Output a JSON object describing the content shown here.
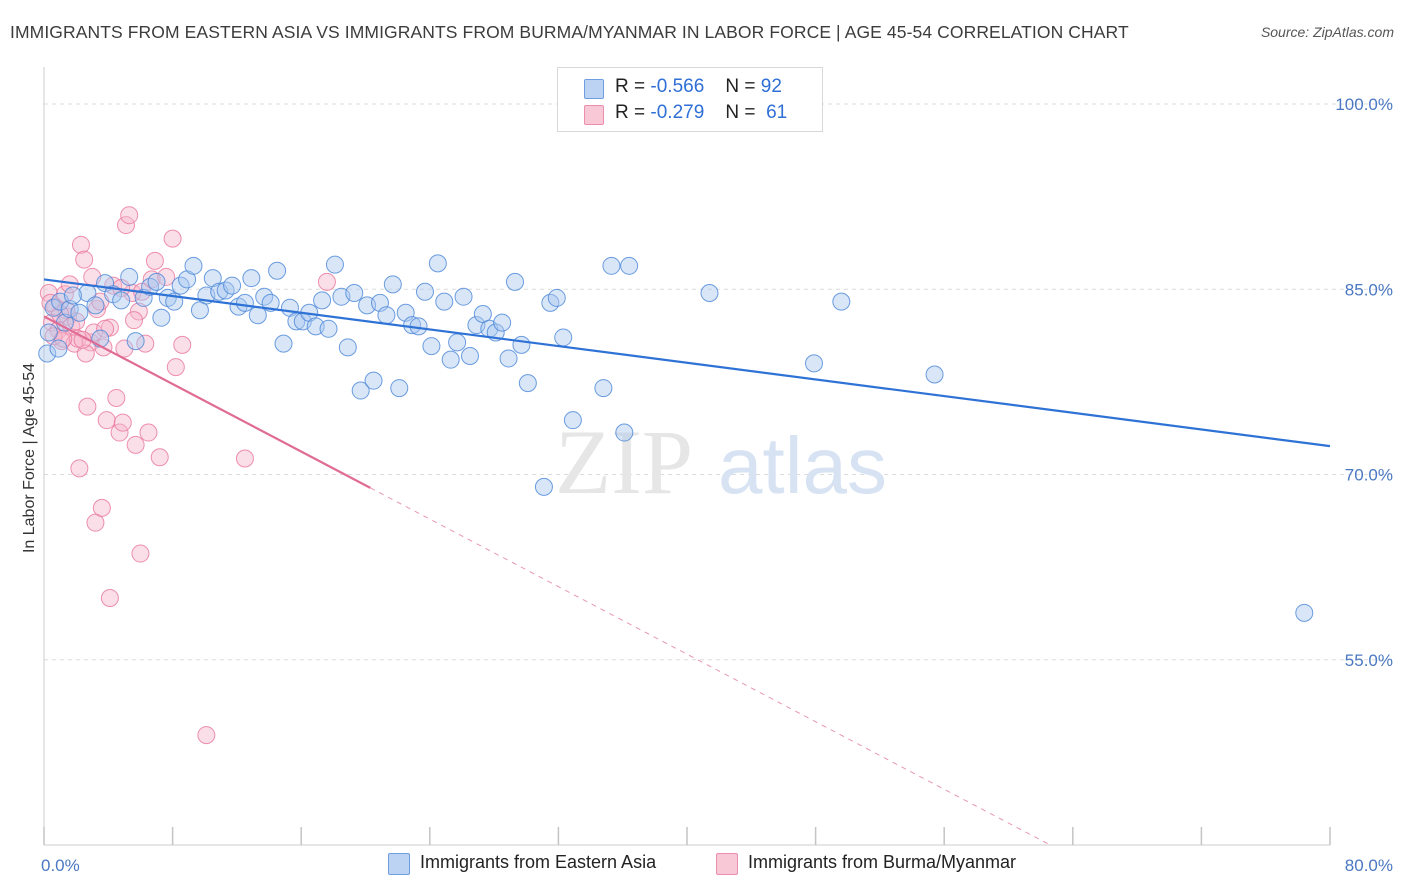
{
  "title": "IMMIGRANTS FROM EASTERN ASIA VS IMMIGRANTS FROM BURMA/MYANMAR IN LABOR FORCE | AGE 45-54 CORRELATION CHART",
  "source": "Source: ZipAtlas.com",
  "watermark": {
    "zip": "ZIP",
    "atlas": "atlas"
  },
  "legend": {
    "r_label": "R =",
    "n_label": "N =",
    "rows": [
      {
        "r": "-0.566",
        "n": "92"
      },
      {
        "r": "-0.279",
        "n": "61"
      }
    ]
  },
  "colors": {
    "blue_fill": "#a9c8f0",
    "blue_stroke": "#4a86d8",
    "blue_line": "#2f72d6",
    "pink_fill": "#f7b7cb",
    "pink_stroke": "#e8769b",
    "pink_line": "#e06b95",
    "grid": "#dcdcdc",
    "tick": "#4a78c2"
  },
  "chart_data": {
    "type": "scatter",
    "ylabel": "In Labor Force | Age 45-54",
    "xlim": [
      0,
      80
    ],
    "ylim": [
      40,
      103
    ],
    "x_tick_labels": [
      {
        "v": 0,
        "label": "0.0%"
      },
      {
        "v": 80,
        "label": "80.0%"
      }
    ],
    "y_tick_labels": [
      {
        "v": 100,
        "label": "100.0%"
      },
      {
        "v": 85,
        "label": "85.0%"
      },
      {
        "v": 70,
        "label": "70.0%"
      },
      {
        "v": 55,
        "label": "55.0%"
      }
    ],
    "x_minor_ticks": [
      0,
      8,
      16,
      24,
      32,
      40,
      48,
      56,
      64,
      72,
      80
    ],
    "series": [
      {
        "name": "Immigrants from Eastern Asia",
        "color": "blue",
        "trend": {
          "x0": 0,
          "y0": 85.8,
          "x1": 80,
          "y1": 72.3,
          "solid_to": 80
        },
        "points": [
          [
            0.3,
            81.5
          ],
          [
            0.6,
            83.5
          ],
          [
            1.0,
            84.0
          ],
          [
            1.3,
            82.3
          ],
          [
            1.6,
            83.4
          ],
          [
            2.2,
            83.1
          ],
          [
            2.7,
            84.7
          ],
          [
            3.2,
            83.7
          ],
          [
            3.8,
            85.5
          ],
          [
            4.3,
            84.6
          ],
          [
            4.8,
            84.1
          ],
          [
            5.3,
            86.0
          ],
          [
            5.7,
            80.8
          ],
          [
            6.2,
            84.3
          ],
          [
            6.6,
            85.2
          ],
          [
            7.0,
            85.6
          ],
          [
            7.3,
            82.7
          ],
          [
            7.7,
            84.3
          ],
          [
            8.1,
            84.0
          ],
          [
            8.5,
            85.3
          ],
          [
            8.9,
            85.8
          ],
          [
            9.3,
            86.9
          ],
          [
            9.7,
            83.3
          ],
          [
            10.1,
            84.5
          ],
          [
            10.5,
            85.9
          ],
          [
            10.9,
            84.8
          ],
          [
            11.3,
            84.9
          ],
          [
            11.7,
            85.3
          ],
          [
            12.1,
            83.6
          ],
          [
            12.5,
            83.9
          ],
          [
            12.9,
            85.9
          ],
          [
            13.3,
            82.9
          ],
          [
            13.7,
            84.4
          ],
          [
            14.1,
            83.9
          ],
          [
            14.5,
            86.5
          ],
          [
            14.9,
            80.6
          ],
          [
            15.3,
            83.5
          ],
          [
            15.7,
            82.4
          ],
          [
            16.1,
            82.4
          ],
          [
            16.5,
            83.1
          ],
          [
            16.9,
            82.0
          ],
          [
            17.3,
            84.1
          ],
          [
            17.7,
            81.8
          ],
          [
            18.1,
            87.0
          ],
          [
            18.5,
            84.4
          ],
          [
            18.9,
            80.3
          ],
          [
            19.3,
            84.7
          ],
          [
            19.7,
            76.8
          ],
          [
            20.1,
            83.7
          ],
          [
            20.5,
            77.6
          ],
          [
            20.9,
            83.9
          ],
          [
            21.3,
            82.9
          ],
          [
            21.7,
            85.4
          ],
          [
            22.1,
            77.0
          ],
          [
            22.5,
            83.1
          ],
          [
            22.9,
            82.1
          ],
          [
            23.3,
            82.0
          ],
          [
            23.7,
            84.8
          ],
          [
            24.1,
            80.4
          ],
          [
            24.5,
            87.1
          ],
          [
            24.9,
            84.0
          ],
          [
            25.3,
            79.3
          ],
          [
            25.7,
            80.7
          ],
          [
            26.1,
            84.4
          ],
          [
            26.5,
            79.6
          ],
          [
            26.9,
            82.1
          ],
          [
            27.3,
            83.0
          ],
          [
            27.7,
            81.8
          ],
          [
            28.1,
            81.5
          ],
          [
            28.5,
            82.3
          ],
          [
            28.9,
            79.4
          ],
          [
            29.3,
            85.6
          ],
          [
            29.7,
            80.5
          ],
          [
            30.1,
            77.4
          ],
          [
            31.1,
            69.0
          ],
          [
            31.5,
            83.9
          ],
          [
            31.9,
            84.3
          ],
          [
            32.3,
            81.1
          ],
          [
            32.9,
            74.4
          ],
          [
            34.8,
            77.0
          ],
          [
            35.3,
            86.9
          ],
          [
            36.1,
            73.4
          ],
          [
            36.4,
            86.9
          ],
          [
            41.4,
            84.7
          ],
          [
            47.9,
            79.0
          ],
          [
            49.6,
            84.0
          ],
          [
            55.4,
            78.1
          ],
          [
            78.4,
            58.8
          ],
          [
            0.2,
            79.8
          ],
          [
            0.9,
            80.2
          ],
          [
            1.8,
            84.5
          ],
          [
            3.5,
            81.0
          ]
        ]
      },
      {
        "name": "Immigrants from Burma/Myanmar",
        "color": "pink",
        "trend": {
          "x0": 0,
          "y0": 82.8,
          "x1": 62.6,
          "y1": 40,
          "solid_to": 20.3
        },
        "points": [
          [
            0.3,
            84.7
          ],
          [
            0.5,
            82.3
          ],
          [
            0.7,
            83.6
          ],
          [
            0.9,
            81.7
          ],
          [
            1.1,
            80.8
          ],
          [
            1.3,
            84.6
          ],
          [
            1.5,
            82.8
          ],
          [
            1.7,
            82.0
          ],
          [
            1.9,
            80.6
          ],
          [
            2.1,
            81.0
          ],
          [
            2.3,
            88.6
          ],
          [
            2.5,
            87.4
          ],
          [
            2.7,
            75.5
          ],
          [
            2.9,
            80.7
          ],
          [
            3.1,
            81.5
          ],
          [
            3.3,
            83.4
          ],
          [
            3.5,
            84.0
          ],
          [
            3.7,
            80.3
          ],
          [
            3.9,
            74.4
          ],
          [
            4.1,
            81.9
          ],
          [
            4.3,
            85.3
          ],
          [
            4.5,
            76.2
          ],
          [
            4.7,
            73.4
          ],
          [
            4.9,
            74.2
          ],
          [
            5.1,
            90.2
          ],
          [
            5.3,
            91.0
          ],
          [
            5.5,
            84.7
          ],
          [
            5.7,
            72.4
          ],
          [
            5.9,
            83.2
          ],
          [
            6.1,
            84.8
          ],
          [
            6.3,
            80.6
          ],
          [
            6.5,
            73.4
          ],
          [
            6.7,
            85.8
          ],
          [
            6.9,
            87.3
          ],
          [
            7.2,
            71.4
          ],
          [
            7.6,
            86.0
          ],
          [
            8.0,
            89.1
          ],
          [
            8.2,
            78.7
          ],
          [
            8.6,
            80.5
          ],
          [
            2.2,
            70.5
          ],
          [
            3.2,
            66.1
          ],
          [
            3.6,
            67.3
          ],
          [
            4.1,
            60.0
          ],
          [
            6.0,
            63.6
          ],
          [
            10.1,
            48.9
          ],
          [
            12.5,
            71.3
          ],
          [
            17.6,
            85.6
          ],
          [
            1.6,
            85.4
          ],
          [
            2.6,
            79.8
          ],
          [
            3.0,
            86.0
          ],
          [
            5.0,
            80.2
          ],
          [
            4.8,
            85.1
          ],
          [
            0.6,
            81.2
          ],
          [
            1.4,
            83.3
          ],
          [
            2.0,
            82.4
          ],
          [
            5.6,
            82.5
          ],
          [
            1.0,
            83.0
          ],
          [
            0.4,
            83.9
          ],
          [
            1.2,
            81.0
          ],
          [
            2.4,
            80.9
          ],
          [
            3.8,
            81.8
          ]
        ]
      }
    ],
    "bottom_legend": [
      {
        "label": "Immigrants from Eastern Asia",
        "color": "blue"
      },
      {
        "label": "Immigrants from Burma/Myanmar",
        "color": "pink"
      }
    ]
  }
}
